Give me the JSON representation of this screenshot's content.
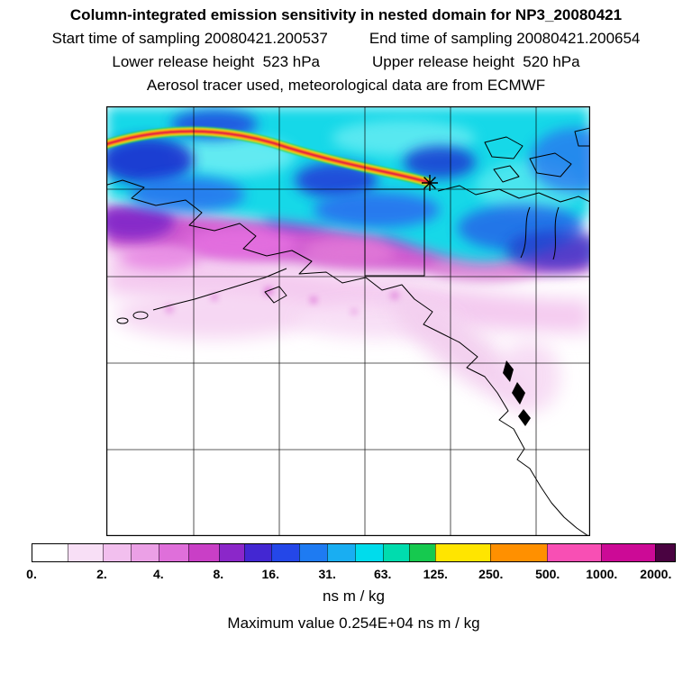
{
  "header": {
    "title": "Column-integrated emission sensitivity in nested domain for NP3_20080421",
    "start_time_label": "Start time of sampling 20080421.200537",
    "end_time_label": "End time of sampling 20080421.200654",
    "lower_release_label": "Lower release height  523 hPa",
    "upper_release_label": "Upper release height  520 hPa",
    "tracer_line": "Aerosol tracer used, meteorological data are from ECMWF"
  },
  "colorbar": {
    "units": "ns m / kg",
    "segments": [
      {
        "from": 0.0,
        "to": 0.055,
        "color": "#FFFFFF"
      },
      {
        "from": 0.055,
        "to": 0.109,
        "color": "#F8DFF6"
      },
      {
        "from": 0.109,
        "to": 0.153,
        "color": "#F2BFEE"
      },
      {
        "from": 0.153,
        "to": 0.197,
        "color": "#EBA0E6"
      },
      {
        "from": 0.197,
        "to": 0.243,
        "color": "#DF6FDA"
      },
      {
        "from": 0.243,
        "to": 0.29,
        "color": "#C93FC6"
      },
      {
        "from": 0.29,
        "to": 0.33,
        "color": "#8B27C9"
      },
      {
        "from": 0.33,
        "to": 0.371,
        "color": "#4327D2"
      },
      {
        "from": 0.371,
        "to": 0.415,
        "color": "#2447E8"
      },
      {
        "from": 0.415,
        "to": 0.459,
        "color": "#1E7BF2"
      },
      {
        "from": 0.459,
        "to": 0.502,
        "color": "#19AEF2"
      },
      {
        "from": 0.502,
        "to": 0.545,
        "color": "#00DCEC"
      },
      {
        "from": 0.545,
        "to": 0.586,
        "color": "#00DCAE"
      },
      {
        "from": 0.586,
        "to": 0.627,
        "color": "#16C94F"
      },
      {
        "from": 0.627,
        "to": 0.713,
        "color": "#FFE500"
      },
      {
        "from": 0.713,
        "to": 0.801,
        "color": "#FF9000"
      },
      {
        "from": 0.801,
        "to": 0.885,
        "color": "#F84FB4"
      },
      {
        "from": 0.885,
        "to": 0.969,
        "color": "#CC0A96"
      },
      {
        "from": 0.969,
        "to": 1.0,
        "color": "#4A0341"
      }
    ],
    "ticks": [
      {
        "label": "0.",
        "pos": 0.0
      },
      {
        "label": "2.",
        "pos": 0.109
      },
      {
        "label": "4.",
        "pos": 0.197
      },
      {
        "label": "8.",
        "pos": 0.29
      },
      {
        "label": "16.",
        "pos": 0.371
      },
      {
        "label": "31.",
        "pos": 0.459
      },
      {
        "label": "63.",
        "pos": 0.545
      },
      {
        "label": "125.",
        "pos": 0.627
      },
      {
        "label": "250.",
        "pos": 0.713
      },
      {
        "label": "500.",
        "pos": 0.801
      },
      {
        "label": "1000.",
        "pos": 0.885
      },
      {
        "label": "2000.",
        "pos": 0.969
      }
    ]
  },
  "footer": {
    "max_value_line": "Maximum value  0.254E+04 ns m / kg"
  },
  "chart_data": {
    "type": "heatmap",
    "title": "Column-integrated emission sensitivity in nested domain for NP3_20080421",
    "annotations": [
      "Start time of sampling 20080421.200537",
      "End time of sampling 20080421.200654",
      "Lower release height  523 hPa",
      "Upper release height  520 hPa",
      "Aerosol tracer used, meteorological data are from ECMWF",
      "Maximum value  0.254E+04 ns m / kg"
    ],
    "units": "ns m / kg",
    "max_value": "0.254E+04",
    "colorbar": {
      "orientation": "horizontal",
      "position": "bottom",
      "levels": [
        0,
        2,
        4,
        8,
        16,
        31,
        63,
        125,
        250,
        500,
        1000,
        2000
      ],
      "colors": [
        "#FFFFFF",
        "#F8DFF6",
        "#F2BFEE",
        "#EBA0E6",
        "#DF6FDA",
        "#C93FC6",
        "#8B27C9",
        "#4327D2",
        "#2447E8",
        "#1E7BF2",
        "#19AEF2",
        "#00DCEC",
        "#00DCAE",
        "#16C94F",
        "#FFE500",
        "#FF9000",
        "#F84FB4",
        "#CC0A96",
        "#4A0341"
      ]
    },
    "map": {
      "region": "Alaska / Gulf of Alaska / northwestern Canada with coastlines",
      "gridlines": {
        "vertical": 5,
        "horizontal": 4
      },
      "features": [
        "cyan-blue-magenta sensitivity plume across northern half",
        "high-value red-yellow arc streak ending at receptor",
        "asterisk receptor marker",
        "small nested rectangle outline",
        "coastline contours"
      ]
    }
  }
}
